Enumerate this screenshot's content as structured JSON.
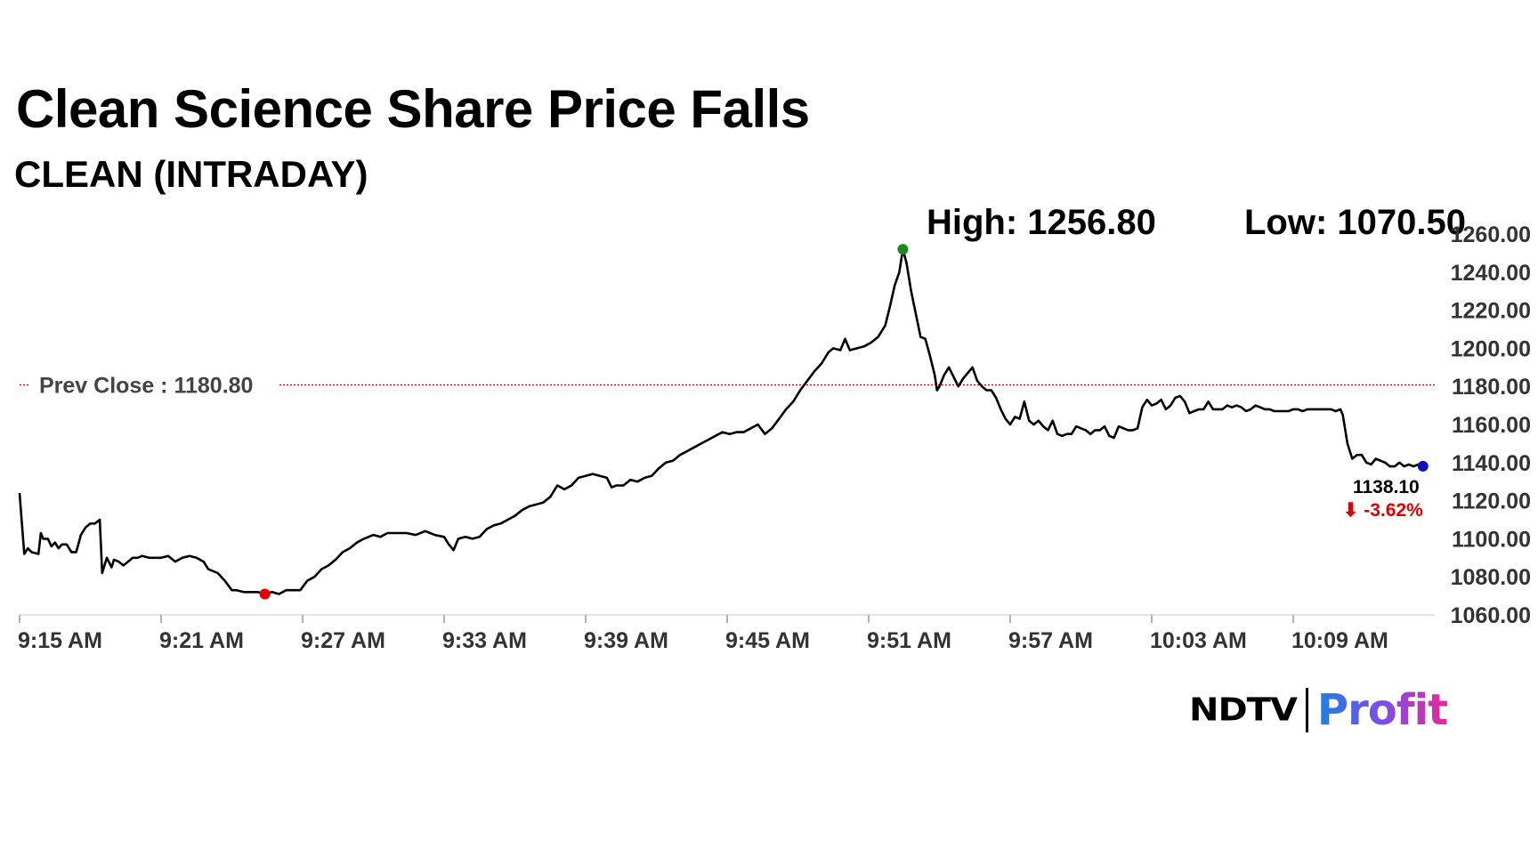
{
  "header": {
    "title": "Clean Science Share Price Falls",
    "subtitle": "CLEAN (INTRADAY)",
    "high_label": "High: 1256.80",
    "low_label": "Low: 1070.50"
  },
  "brand": {
    "ndtv": "NDTV",
    "profit": "Profit"
  },
  "chart_data": {
    "type": "line",
    "title": "Clean Science Share Price Falls",
    "subtitle": "CLEAN (INTRADAY)",
    "xlabel": "",
    "ylabel": "",
    "ylim": [
      1060,
      1260
    ],
    "y_ticks": [
      "1060.00",
      "1080.00",
      "1100.00",
      "1120.00",
      "1140.00",
      "1160.00",
      "1180.00",
      "1200.00",
      "1220.00",
      "1240.00",
      "1260.00"
    ],
    "x_ticks": [
      "9:15 AM",
      "9:21 AM",
      "9:27 AM",
      "9:33 AM",
      "9:39 AM",
      "9:45 AM",
      "9:51 AM",
      "9:57 AM",
      "10:03 AM",
      "10:09 AM"
    ],
    "x_unit_minutes_from": "9:15 AM",
    "grid": false,
    "prev_close": {
      "value": 1180.8,
      "label": "Prev Close : 1180.80",
      "color": "#cc0000"
    },
    "high": {
      "value": 1256.8,
      "time": "9:51 AM",
      "marker_color": "#1a8a1a"
    },
    "low": {
      "value": 1070.5,
      "time": "9:25 AM",
      "marker_color": "#e00000"
    },
    "last": {
      "price": "1138.10",
      "change": "⬇ -3.62%",
      "marker_color": "#1010c0"
    },
    "series": [
      {
        "points": [
          [
            0,
            1124
          ],
          [
            0.1,
            1108
          ],
          [
            0.2,
            1092
          ],
          [
            0.35,
            1095
          ],
          [
            0.5,
            1093
          ],
          [
            0.8,
            1092
          ],
          [
            0.9,
            1103
          ],
          [
            1.0,
            1100
          ],
          [
            1.2,
            1100
          ],
          [
            1.35,
            1096
          ],
          [
            1.5,
            1098
          ],
          [
            1.65,
            1095
          ],
          [
            1.8,
            1097
          ],
          [
            2.0,
            1097
          ],
          [
            2.2,
            1093
          ],
          [
            2.4,
            1093
          ],
          [
            2.6,
            1102
          ],
          [
            2.8,
            1106
          ],
          [
            3.0,
            1108
          ],
          [
            3.2,
            1108
          ],
          [
            3.4,
            1110
          ],
          [
            3.5,
            1082
          ],
          [
            3.7,
            1090
          ],
          [
            3.9,
            1085
          ],
          [
            4.0,
            1089
          ],
          [
            4.2,
            1088
          ],
          [
            4.4,
            1086
          ],
          [
            4.6,
            1088
          ],
          [
            4.8,
            1090
          ],
          [
            5.0,
            1090
          ],
          [
            5.2,
            1091
          ],
          [
            5.5,
            1090
          ],
          [
            5.8,
            1090
          ],
          [
            6.0,
            1090
          ],
          [
            6.3,
            1091
          ],
          [
            6.6,
            1088
          ],
          [
            6.9,
            1090
          ],
          [
            7.2,
            1091
          ],
          [
            7.5,
            1090
          ],
          [
            7.8,
            1088
          ],
          [
            8.0,
            1084
          ],
          [
            8.4,
            1082
          ],
          [
            8.7,
            1078
          ],
          [
            9.0,
            1073
          ],
          [
            9.2,
            1073
          ],
          [
            9.5,
            1072
          ],
          [
            9.8,
            1072
          ],
          [
            10.1,
            1072
          ],
          [
            10.4,
            1071
          ],
          [
            10.7,
            1072
          ],
          [
            11.0,
            1071
          ],
          [
            11.3,
            1073
          ],
          [
            11.6,
            1073
          ],
          [
            11.9,
            1073
          ],
          [
            12.2,
            1078
          ],
          [
            12.5,
            1080
          ],
          [
            12.8,
            1084
          ],
          [
            13.1,
            1086
          ],
          [
            13.4,
            1089
          ],
          [
            13.7,
            1093
          ],
          [
            14.0,
            1095
          ],
          [
            14.3,
            1098
          ],
          [
            14.6,
            1100
          ],
          [
            15.0,
            1102
          ],
          [
            15.3,
            1101
          ],
          [
            15.6,
            1103
          ],
          [
            16.0,
            1103
          ],
          [
            16.4,
            1103
          ],
          [
            16.8,
            1102
          ],
          [
            17.2,
            1104
          ],
          [
            17.6,
            1102
          ],
          [
            18.0,
            1101
          ],
          [
            18.2,
            1097
          ],
          [
            18.4,
            1094
          ],
          [
            18.6,
            1100
          ],
          [
            18.9,
            1101
          ],
          [
            19.2,
            1100
          ],
          [
            19.5,
            1101
          ],
          [
            19.8,
            1105
          ],
          [
            20.1,
            1107
          ],
          [
            20.4,
            1108
          ],
          [
            20.7,
            1110
          ],
          [
            21.0,
            1112
          ],
          [
            21.3,
            1115
          ],
          [
            21.6,
            1117
          ],
          [
            21.9,
            1118
          ],
          [
            22.2,
            1119
          ],
          [
            22.5,
            1122
          ],
          [
            22.8,
            1128
          ],
          [
            23.1,
            1126
          ],
          [
            23.4,
            1128
          ],
          [
            23.7,
            1132
          ],
          [
            24.0,
            1133
          ],
          [
            24.3,
            1134
          ],
          [
            24.6,
            1133
          ],
          [
            24.9,
            1132
          ],
          [
            25.1,
            1127
          ],
          [
            25.3,
            1128
          ],
          [
            25.6,
            1128
          ],
          [
            25.9,
            1131
          ],
          [
            26.2,
            1130
          ],
          [
            26.5,
            1132
          ],
          [
            26.8,
            1133
          ],
          [
            27.1,
            1137
          ],
          [
            27.4,
            1140
          ],
          [
            27.7,
            1141
          ],
          [
            28.0,
            1144
          ],
          [
            28.3,
            1146
          ],
          [
            28.6,
            1148
          ],
          [
            28.9,
            1150
          ],
          [
            29.2,
            1152
          ],
          [
            29.5,
            1154
          ],
          [
            29.8,
            1156
          ],
          [
            30.1,
            1155
          ],
          [
            30.4,
            1156
          ],
          [
            30.7,
            1156
          ],
          [
            31.0,
            1158
          ],
          [
            31.3,
            1160
          ],
          [
            31.6,
            1155
          ],
          [
            31.9,
            1158
          ],
          [
            32.2,
            1163
          ],
          [
            32.5,
            1168
          ],
          [
            32.8,
            1172
          ],
          [
            33.1,
            1178
          ],
          [
            33.4,
            1183
          ],
          [
            33.7,
            1188
          ],
          [
            34.0,
            1192
          ],
          [
            34.3,
            1198
          ],
          [
            34.5,
            1200
          ],
          [
            34.8,
            1199
          ],
          [
            35.0,
            1205
          ],
          [
            35.2,
            1199
          ],
          [
            35.5,
            1200
          ],
          [
            35.8,
            1201
          ],
          [
            36.1,
            1203
          ],
          [
            36.4,
            1206
          ],
          [
            36.7,
            1212
          ],
          [
            36.9,
            1222
          ],
          [
            37.1,
            1233
          ],
          [
            37.3,
            1240
          ],
          [
            37.45,
            1252
          ],
          [
            37.6,
            1245
          ],
          [
            37.8,
            1230
          ],
          [
            38.0,
            1218
          ],
          [
            38.2,
            1206
          ],
          [
            38.4,
            1205
          ],
          [
            38.6,
            1196
          ],
          [
            38.8,
            1186
          ],
          [
            38.9,
            1178
          ],
          [
            39.0,
            1180
          ],
          [
            39.2,
            1186
          ],
          [
            39.4,
            1190
          ],
          [
            39.6,
            1185
          ],
          [
            39.8,
            1180
          ],
          [
            40.0,
            1184
          ],
          [
            40.2,
            1187
          ],
          [
            40.4,
            1190
          ],
          [
            40.6,
            1183
          ],
          [
            40.8,
            1180
          ],
          [
            41.0,
            1178
          ],
          [
            41.2,
            1178
          ],
          [
            41.4,
            1174
          ],
          [
            41.6,
            1168
          ],
          [
            41.8,
            1163
          ],
          [
            42.0,
            1160
          ],
          [
            42.2,
            1164
          ],
          [
            42.4,
            1163
          ],
          [
            42.6,
            1172
          ],
          [
            42.8,
            1162
          ],
          [
            43.0,
            1160
          ],
          [
            43.2,
            1162
          ],
          [
            43.4,
            1159
          ],
          [
            43.6,
            1157
          ],
          [
            43.8,
            1162
          ],
          [
            44.0,
            1155
          ],
          [
            44.2,
            1154
          ],
          [
            44.4,
            1155
          ],
          [
            44.6,
            1155
          ],
          [
            44.8,
            1159
          ],
          [
            45.0,
            1158
          ],
          [
            45.2,
            1157
          ],
          [
            45.4,
            1155
          ],
          [
            45.6,
            1157
          ],
          [
            45.8,
            1157
          ],
          [
            46.0,
            1159
          ],
          [
            46.2,
            1154
          ],
          [
            46.4,
            1153
          ],
          [
            46.6,
            1159
          ],
          [
            46.8,
            1158
          ],
          [
            47.0,
            1157
          ],
          [
            47.2,
            1157
          ],
          [
            47.4,
            1158
          ],
          [
            47.6,
            1169
          ],
          [
            47.8,
            1173
          ],
          [
            48.0,
            1170
          ],
          [
            48.2,
            1171
          ],
          [
            48.4,
            1173
          ],
          [
            48.6,
            1168
          ],
          [
            48.8,
            1170
          ],
          [
            49.0,
            1174
          ],
          [
            49.2,
            1175
          ],
          [
            49.4,
            1172
          ],
          [
            49.6,
            1166
          ],
          [
            49.8,
            1167
          ],
          [
            50.0,
            1168
          ],
          [
            50.2,
            1168
          ],
          [
            50.4,
            1172
          ],
          [
            50.6,
            1168
          ],
          [
            50.8,
            1168
          ],
          [
            51.0,
            1168
          ],
          [
            51.2,
            1170
          ],
          [
            51.4,
            1169
          ],
          [
            51.6,
            1170
          ],
          [
            51.8,
            1169
          ],
          [
            52.0,
            1167
          ],
          [
            52.2,
            1168
          ],
          [
            52.4,
            1170
          ],
          [
            52.6,
            1169
          ],
          [
            52.8,
            1168
          ],
          [
            53.0,
            1168
          ],
          [
            53.2,
            1167
          ],
          [
            53.4,
            1167
          ],
          [
            53.6,
            1167
          ],
          [
            53.8,
            1167
          ],
          [
            54.0,
            1168
          ],
          [
            54.2,
            1168
          ],
          [
            54.4,
            1167
          ],
          [
            54.6,
            1168
          ],
          [
            54.8,
            1168
          ],
          [
            55.0,
            1168
          ],
          [
            55.2,
            1168
          ],
          [
            55.4,
            1168
          ],
          [
            55.6,
            1168
          ],
          [
            55.8,
            1167
          ],
          [
            56.0,
            1168
          ],
          [
            56.1,
            1165
          ],
          [
            56.3,
            1150
          ],
          [
            56.5,
            1142
          ],
          [
            56.7,
            1144
          ],
          [
            56.9,
            1144
          ],
          [
            57.1,
            1140
          ],
          [
            57.3,
            1139
          ],
          [
            57.5,
            1142
          ],
          [
            57.7,
            1141
          ],
          [
            57.9,
            1140
          ],
          [
            58.1,
            1138
          ],
          [
            58.3,
            1138
          ],
          [
            58.5,
            1140
          ],
          [
            58.7,
            1138
          ],
          [
            58.9,
            1139
          ],
          [
            59.1,
            1138
          ],
          [
            59.3,
            1139
          ],
          [
            59.5,
            1138.1
          ]
        ]
      }
    ]
  }
}
